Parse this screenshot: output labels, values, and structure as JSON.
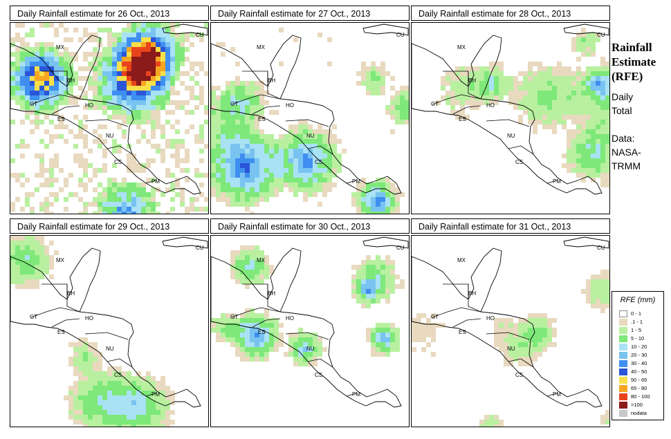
{
  "panels": [
    {
      "title": "Daily Rainfall estimate for  26 Oct., 2013",
      "intensity": 1.0,
      "seed": 11
    },
    {
      "title": "Daily Rainfall estimate for  27 Oct., 2013",
      "intensity": 0.65,
      "seed": 23
    },
    {
      "title": "Daily Rainfall estimate for  28 Oct., 2013",
      "intensity": 0.5,
      "seed": 37
    },
    {
      "title": "Daily Rainfall estimate for  29 Oct., 2013",
      "intensity": 0.45,
      "seed": 41
    },
    {
      "title": "Daily Rainfall estimate for  30 Oct., 2013",
      "intensity": 0.55,
      "seed": 53
    },
    {
      "title": "Daily Rainfall estimate for  31 Oct., 2013",
      "intensity": 0.3,
      "seed": 67
    }
  ],
  "countries": [
    "MX",
    "BH",
    "GT",
    "HO",
    "ES",
    "NU",
    "CS",
    "PM",
    "CU"
  ],
  "sidebar": {
    "title_line1": "Rainfall",
    "title_line2": "Estimate",
    "title_line3": "(RFE)",
    "daily": "Daily",
    "total": "Total",
    "data": "Data:",
    "source1": "NASA-",
    "source2": "TRMM"
  },
  "legend": {
    "title": "RFE (mm)",
    "items": [
      {
        "label": "0 - 1",
        "color": "#ffffff"
      },
      {
        "label": ".1 - 1",
        "color": "#e8d9bf"
      },
      {
        "label": "1 - 5",
        "color": "#b8f0a0"
      },
      {
        "label": "5 - 10",
        "color": "#7ee87a"
      },
      {
        "label": "10 - 20",
        "color": "#a9e2f5"
      },
      {
        "label": "20 - 30",
        "color": "#79c3f0"
      },
      {
        "label": "30 - 40",
        "color": "#3f8ff0"
      },
      {
        "label": "40 - 50",
        "color": "#2a55d8"
      },
      {
        "label": "50 - 65",
        "color": "#f7e04a"
      },
      {
        "label": "65 - 80",
        "color": "#f6a623"
      },
      {
        "label": "80 - 100",
        "color": "#e8441c"
      },
      {
        "label": ">100",
        "color": "#8b1a1a"
      },
      {
        "label": "nodata",
        "color": "#c8c8c8"
      }
    ]
  }
}
